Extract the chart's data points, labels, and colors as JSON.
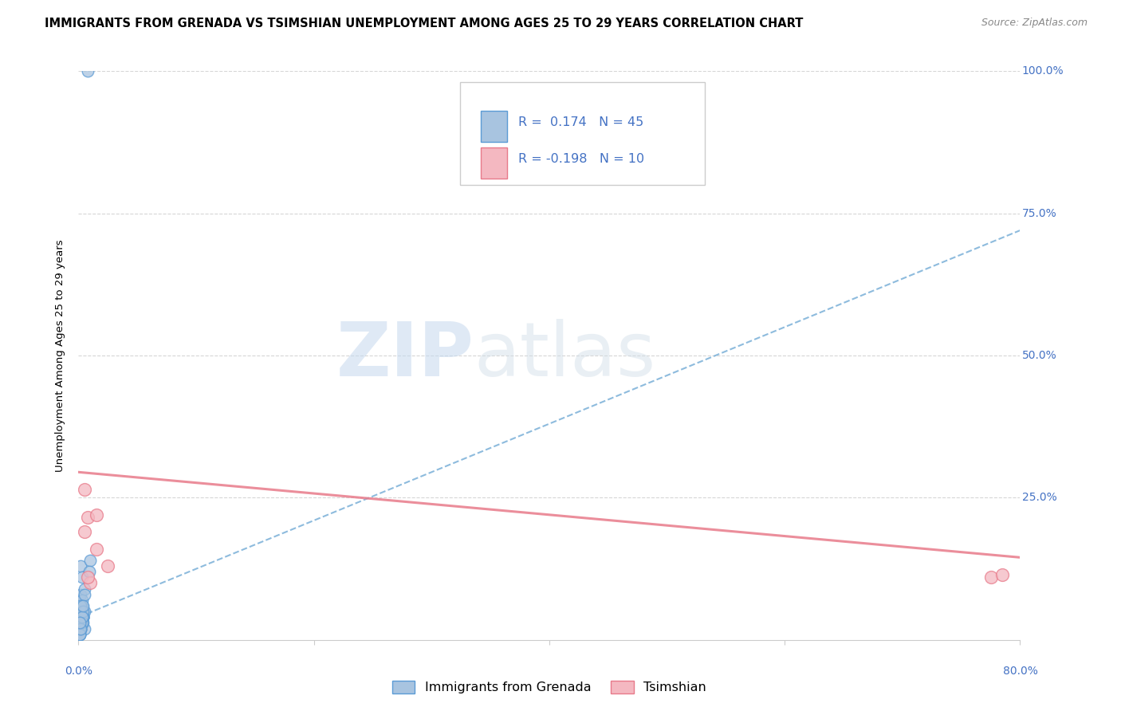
{
  "title": "IMMIGRANTS FROM GRENADA VS TSIMSHIAN UNEMPLOYMENT AMONG AGES 25 TO 29 YEARS CORRELATION CHART",
  "source": "Source: ZipAtlas.com",
  "ylabel": "Unemployment Among Ages 25 to 29 years",
  "xlim": [
    0.0,
    0.8
  ],
  "ylim": [
    0.0,
    1.0
  ],
  "xticks": [
    0.0,
    0.2,
    0.4,
    0.6,
    0.8
  ],
  "xticklabels_left": "0.0%",
  "xticklabels_right": "80.0%",
  "ytick_positions": [
    0.25,
    0.5,
    0.75,
    1.0
  ],
  "ytick_labels": [
    "25.0%",
    "50.0%",
    "75.0%",
    "100.0%"
  ],
  "blue_color": "#a8c4e0",
  "blue_edge_color": "#5b9bd5",
  "pink_color": "#f4b8c1",
  "pink_edge_color": "#e87a8a",
  "trend_blue_color": "#7ab0d8",
  "trend_pink_color": "#e87a8a",
  "R_blue": 0.174,
  "N_blue": 45,
  "R_pink": -0.198,
  "N_pink": 10,
  "legend_label_blue": "Immigrants from Grenada",
  "legend_label_pink": "Tsimshian",
  "watermark_zip": "ZIP",
  "watermark_atlas": "atlas",
  "blue_scatter_x": [
    0.005,
    0.003,
    0.002,
    0.004,
    0.001,
    0.003,
    0.002,
    0.001,
    0.003,
    0.004,
    0.002,
    0.001,
    0.003,
    0.002,
    0.004,
    0.001,
    0.003,
    0.002,
    0.005,
    0.003,
    0.002,
    0.004,
    0.001,
    0.003,
    0.002,
    0.005,
    0.004,
    0.003,
    0.002,
    0.001,
    0.003,
    0.004,
    0.002,
    0.003,
    0.001,
    0.004,
    0.005,
    0.002,
    0.003,
    0.001,
    0.004,
    0.002,
    0.003,
    0.01,
    0.009
  ],
  "blue_scatter_y": [
    0.02,
    0.03,
    0.05,
    0.04,
    0.02,
    0.06,
    0.03,
    0.01,
    0.05,
    0.04,
    0.02,
    0.07,
    0.03,
    0.05,
    0.04,
    0.02,
    0.06,
    0.03,
    0.05,
    0.04,
    0.08,
    0.03,
    0.01,
    0.06,
    0.02,
    0.09,
    0.04,
    0.05,
    0.03,
    0.02,
    0.07,
    0.04,
    0.06,
    0.03,
    0.01,
    0.05,
    0.08,
    0.02,
    0.04,
    0.03,
    0.06,
    0.13,
    0.11,
    0.14,
    0.12
  ],
  "blue_outlier_x": [
    0.008
  ],
  "blue_outlier_y": [
    1.0
  ],
  "pink_scatter_x": [
    0.005,
    0.008,
    0.015,
    0.025,
    0.01,
    0.005,
    0.008,
    0.775,
    0.785,
    0.015
  ],
  "pink_scatter_y": [
    0.265,
    0.215,
    0.16,
    0.13,
    0.1,
    0.19,
    0.11,
    0.11,
    0.115,
    0.22
  ],
  "grid_color": "#cccccc",
  "axis_color": "#4472c4",
  "title_fontsize": 10.5,
  "axis_label_fontsize": 9.5,
  "tick_fontsize": 10,
  "source_fontsize": 9,
  "blue_trend_x0": 0.0,
  "blue_trend_y0": 0.04,
  "blue_trend_x1": 0.8,
  "blue_trend_y1": 0.72,
  "pink_trend_x0": 0.0,
  "pink_trend_y0": 0.295,
  "pink_trend_x1": 0.8,
  "pink_trend_y1": 0.145
}
